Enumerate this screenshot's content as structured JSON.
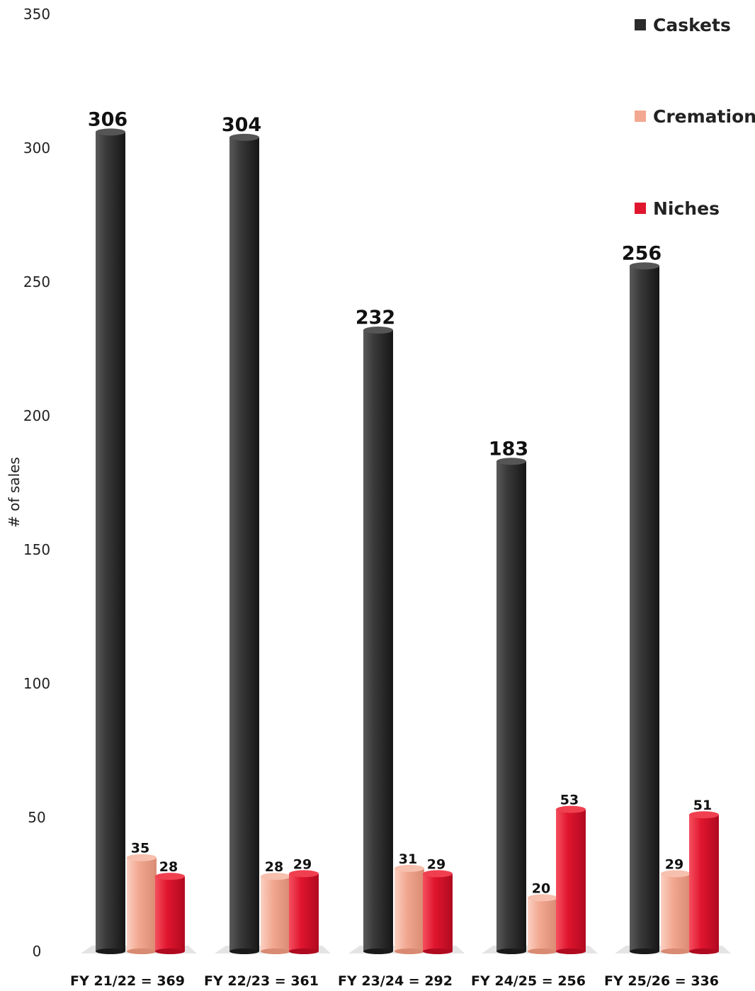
{
  "chart_data": {
    "type": "bar",
    "categories": [
      "FY  21/22 = 369",
      "FY  22/23 = 361",
      "FY  23/24 = 292",
      "FY  24/25 = 256",
      "FY  25/26 = 336"
    ],
    "series": [
      {
        "name": "Caskets",
        "color": "#2b2b2b",
        "values": [
          306,
          304,
          232,
          183,
          256
        ]
      },
      {
        "name": "Cremations",
        "color": "#f2a891",
        "values": [
          35,
          28,
          31,
          20,
          29
        ]
      },
      {
        "name": "Niches",
        "color": "#e0152e",
        "values": [
          28,
          29,
          29,
          53,
          51
        ]
      }
    ],
    "title": "",
    "xlabel": "",
    "ylabel": "# of sales",
    "ylim": [
      0,
      350
    ],
    "yticks": [
      0,
      50,
      100,
      150,
      200,
      250,
      300,
      350
    ],
    "legend_position": "top-right",
    "grid": false
  }
}
